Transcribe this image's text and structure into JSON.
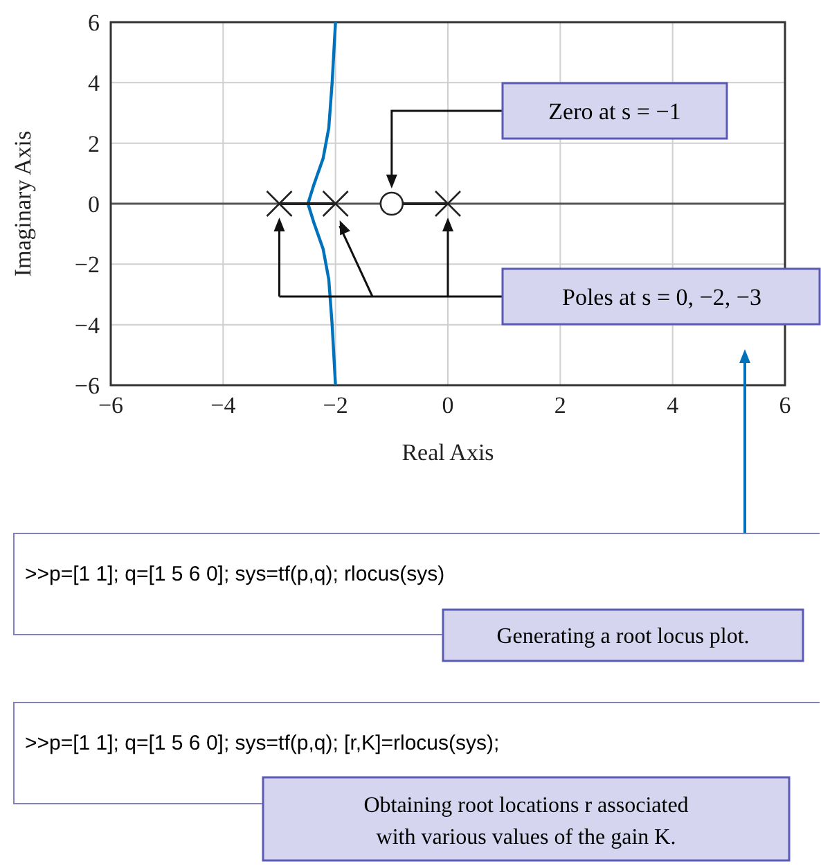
{
  "chart_data": {
    "type": "line",
    "xlabel": "Real Axis",
    "ylabel": "Imaginary Axis",
    "xlim": [
      -6,
      6
    ],
    "ylim": [
      -6,
      6
    ],
    "xticks": [
      {
        "value": -6,
        "label": "−6"
      },
      {
        "value": -4,
        "label": "−4"
      },
      {
        "value": -2,
        "label": "−2"
      },
      0,
      2,
      4,
      6
    ],
    "yticks": [
      {
        "value": -6,
        "label": "−6"
      },
      {
        "value": -4,
        "label": "−4"
      },
      {
        "value": -2,
        "label": "−2"
      },
      0,
      2,
      4,
      6
    ],
    "grid": true,
    "series": [
      {
        "color": "#0072bc",
        "x": [
          -2.0,
          -2.06,
          -2.12,
          -2.22,
          -2.39,
          -2.49,
          -2.39,
          -2.22,
          -2.12,
          -2.06,
          -2.0
        ],
        "values": [
          6,
          4,
          2.5,
          1.5,
          0.6,
          0,
          -0.6,
          -1.5,
          -2.5,
          -4,
          -6
        ]
      },
      {
        "color": "#222222",
        "x": [
          -3,
          -2,
          -1.5,
          -1,
          0
        ],
        "values": [
          0,
          0,
          null,
          0,
          0
        ]
      },
      {
        "type": "scatter",
        "color": "#222222",
        "marker": "cross",
        "x": [
          0,
          -2,
          -3
        ],
        "values": [
          0,
          0,
          0
        ]
      },
      {
        "type": "scatter",
        "color": "#222222",
        "marker": "circle",
        "x": [
          -1
        ],
        "values": [
          0
        ]
      }
    ],
    "annotations": [
      "Zero at s = −1",
      "Poles at s = 0, −2, −3",
      ">>p=[1 1]; q=[1 5 6 0]; sys=tf(p,q); rlocus(sys)",
      "Generating a root locus plot.",
      ">>p=[1 1]; q=[1 5 6 0]; sys=tf(p,q); [r,K]=rlocus(sys);",
      "Obtaining root locations r associated",
      "with various values of the gain K."
    ]
  }
}
